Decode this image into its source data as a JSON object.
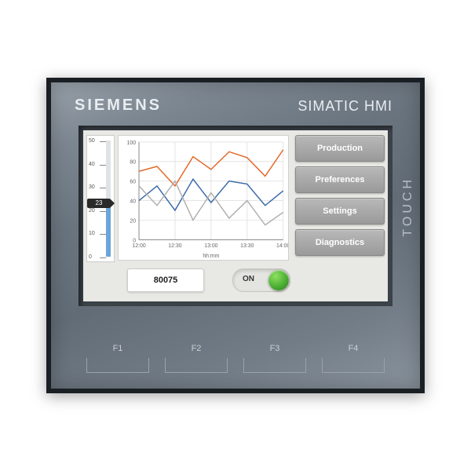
{
  "device": {
    "brand": "SIEMENS",
    "product": "SIMATIC HMI",
    "touch_label": "TOUCH",
    "bezel_color_top": "#9aa3ac",
    "bezel_color_bottom": "#626c76",
    "frame_color": "#1a1f24"
  },
  "gauge": {
    "min": 0,
    "max": 50,
    "tick_step": 10,
    "ticks": [
      50,
      40,
      30,
      20,
      10,
      0
    ],
    "current_value": 23,
    "fill_color": "#6aa6d8",
    "marker_bg": "#2a2a2a",
    "tick_fontsize": 7
  },
  "chart": {
    "type": "line",
    "background_color": "#ffffff",
    "grid_color": "#e4e4e4",
    "axis_color": "#888888",
    "label_fontsize": 7,
    "xlabel": "hh:mm",
    "x_ticks": [
      "12:00",
      "12:30",
      "13:00",
      "13:30",
      "14:00"
    ],
    "ylim": [
      0,
      100
    ],
    "ytick_step": 20,
    "y_ticks": [
      0,
      20,
      40,
      60,
      80,
      100
    ],
    "line_width": 1.5,
    "series": [
      {
        "color": "#e46a2c",
        "values": [
          70,
          75,
          55,
          85,
          72,
          90,
          84,
          65,
          92
        ]
      },
      {
        "color": "#3a6aa8",
        "values": [
          40,
          55,
          30,
          62,
          38,
          60,
          57,
          35,
          50
        ]
      },
      {
        "color": "#b0b0b0",
        "values": [
          55,
          35,
          60,
          20,
          48,
          22,
          40,
          15,
          28
        ]
      }
    ]
  },
  "menu": {
    "items": [
      {
        "label": "Production"
      },
      {
        "label": "Preferences"
      },
      {
        "label": "Settings"
      },
      {
        "label": "Diagnostics"
      }
    ],
    "button_bg_top": "#b8b8b8",
    "button_bg_bottom": "#9a9a9a",
    "button_text_color": "#ffffff",
    "button_fontsize": 11
  },
  "readout": {
    "value": "80075"
  },
  "toggle": {
    "label": "ON",
    "state": "on",
    "knob_color": "#4caf34"
  },
  "fkeys": {
    "keys": [
      "F1",
      "F2",
      "F3",
      "F4"
    ],
    "label_color": "#c8ced4",
    "fontsize": 11
  }
}
